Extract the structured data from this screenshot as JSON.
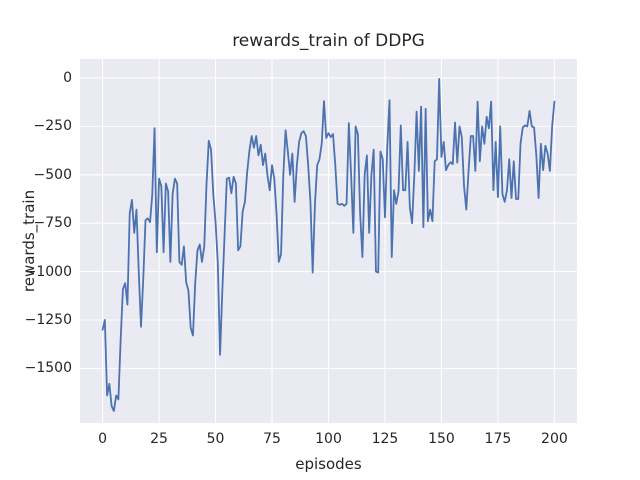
{
  "figure": {
    "title": "rewards_train of DDPG",
    "xlabel": "episodes",
    "ylabel": "rewards_train"
  },
  "chart_data": {
    "type": "line",
    "title": "rewards_train of DDPG",
    "xlabel": "episodes",
    "ylabel": "rewards_train",
    "xlim": [
      -10,
      210
    ],
    "ylim": [
      -1782,
      98
    ],
    "grid": true,
    "legend": false,
    "plot_bg_color": "#EAEAF2",
    "grid_color": "#FFFFFF",
    "text_color": "#262626",
    "line_color": "#4C72B0",
    "x_ticks": [
      0,
      25,
      50,
      75,
      100,
      125,
      150,
      175,
      200
    ],
    "x_tick_labels": [
      "0",
      "25",
      "50",
      "75",
      "100",
      "125",
      "150",
      "175",
      "200"
    ],
    "y_ticks": [
      0,
      -250,
      -500,
      -750,
      -1000,
      -1250,
      -1500
    ],
    "y_tick_labels": [
      "0",
      "−250",
      "−500",
      "−750",
      "−1000",
      "−1250",
      "−1500"
    ],
    "series": [
      {
        "name": "rewards_train",
        "color": "#4C72B0",
        "x_range": [
          0,
          200
        ],
        "x_step": 1,
        "values": [
          -1300,
          -1250,
          -1640,
          -1580,
          -1695,
          -1720,
          -1640,
          -1660,
          -1350,
          -1090,
          -1060,
          -1170,
          -700,
          -630,
          -800,
          -680,
          -1000,
          -1285,
          -1040,
          -735,
          -725,
          -745,
          -600,
          -260,
          -900,
          -520,
          -560,
          -900,
          -545,
          -585,
          -950,
          -600,
          -520,
          -545,
          -950,
          -965,
          -870,
          -1055,
          -1100,
          -1290,
          -1330,
          -1060,
          -890,
          -860,
          -950,
          -870,
          -550,
          -325,
          -370,
          -600,
          -745,
          -955,
          -1430,
          -1100,
          -810,
          -520,
          -515,
          -595,
          -510,
          -545,
          -890,
          -870,
          -690,
          -640,
          -486,
          -375,
          -300,
          -360,
          -300,
          -400,
          -345,
          -450,
          -390,
          -505,
          -580,
          -450,
          -520,
          -700,
          -950,
          -910,
          -500,
          -270,
          -380,
          -500,
          -390,
          -640,
          -450,
          -330,
          -285,
          -275,
          -300,
          -450,
          -640,
          -1005,
          -650,
          -450,
          -420,
          -340,
          -120,
          -310,
          -285,
          -305,
          -290,
          -450,
          -650,
          -655,
          -650,
          -660,
          -650,
          -233,
          -500,
          -800,
          -250,
          -290,
          -700,
          -925,
          -500,
          -400,
          -800,
          -500,
          -370,
          -1000,
          -1005,
          -380,
          -420,
          -720,
          -360,
          -115,
          -925,
          -580,
          -650,
          -585,
          -245,
          -580,
          -580,
          -330,
          -667,
          -750,
          -500,
          -174,
          -480,
          -148,
          -770,
          -160,
          -740,
          -680,
          -740,
          -430,
          -420,
          -5,
          -408,
          -330,
          -476,
          -450,
          -435,
          -445,
          -230,
          -437,
          -250,
          -305,
          -560,
          -680,
          -480,
          -300,
          -300,
          -480,
          -122,
          -430,
          -250,
          -340,
          -200,
          -260,
          -122,
          -580,
          -330,
          -615,
          -250,
          -600,
          -640,
          -580,
          -420,
          -620,
          -430,
          -625,
          -625,
          -340,
          -255,
          -245,
          -250,
          -170,
          -250,
          -255,
          -400,
          -620,
          -340,
          -476,
          -350,
          -390,
          -480,
          -250,
          -122
        ]
      }
    ]
  }
}
